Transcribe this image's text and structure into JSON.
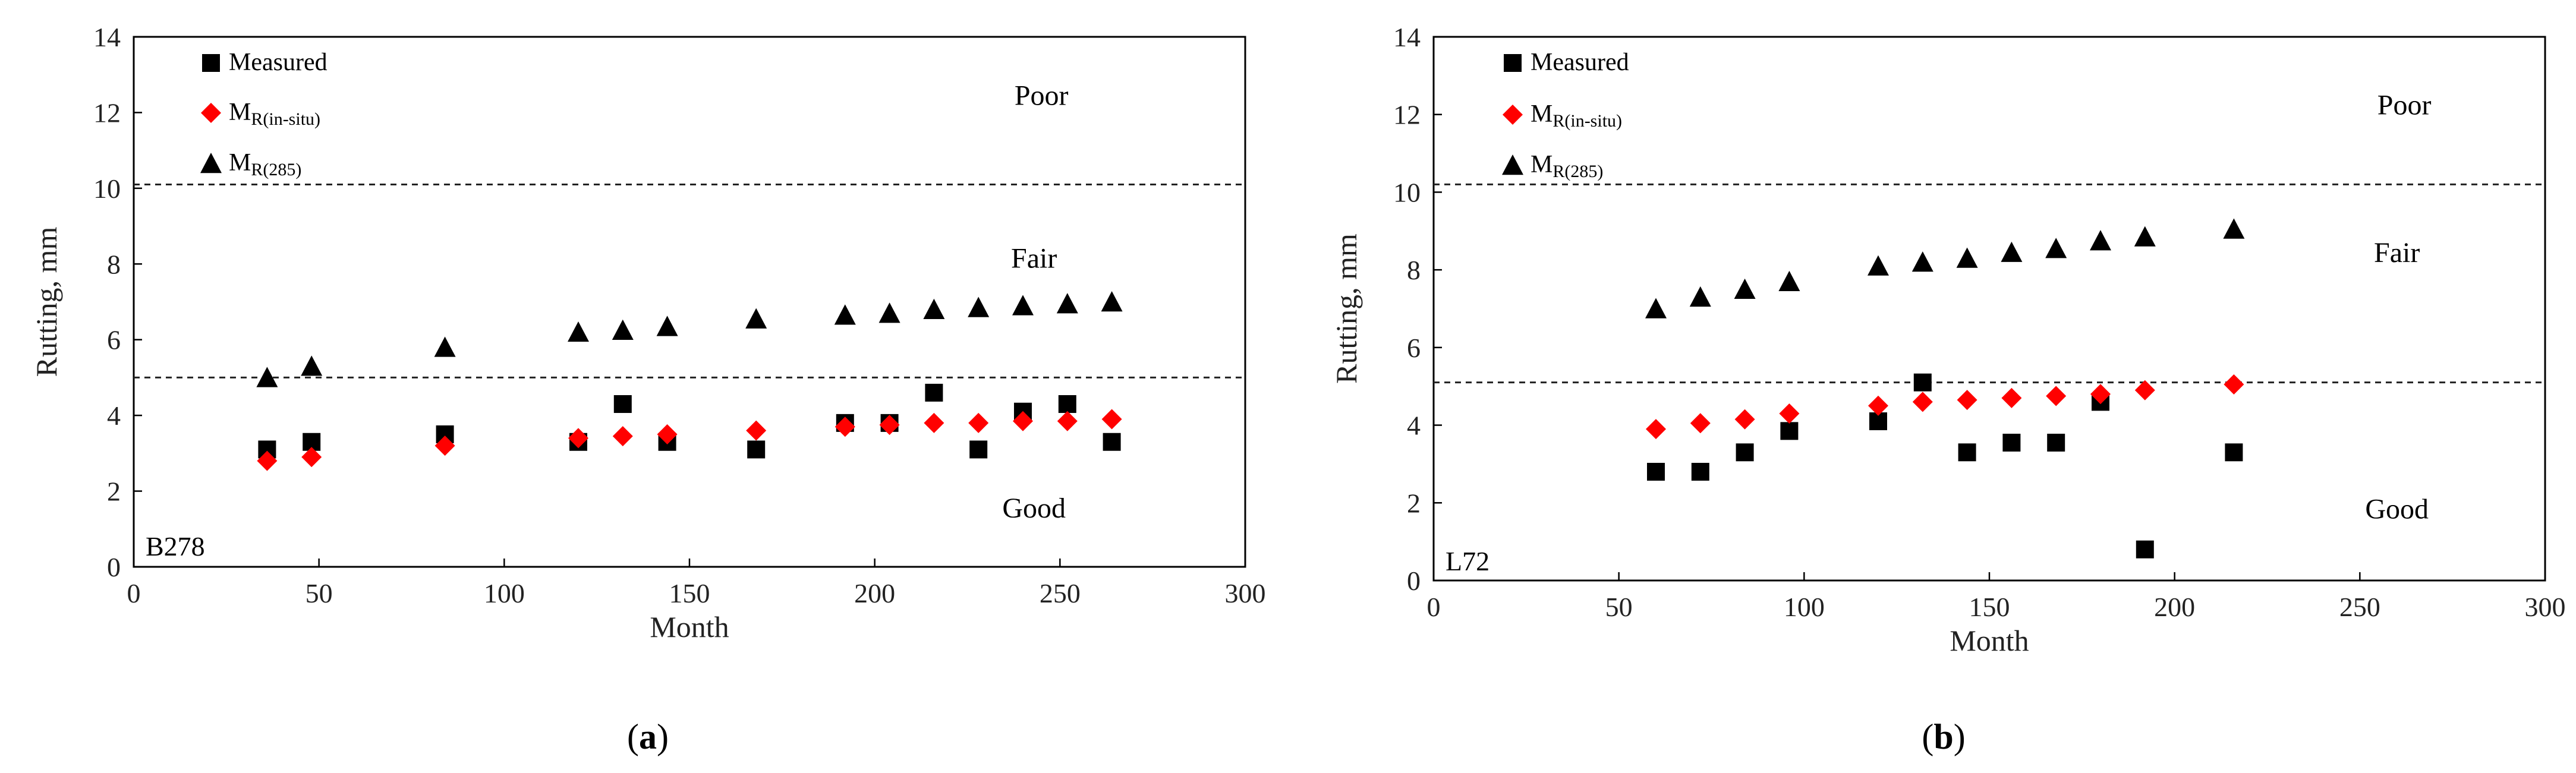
{
  "chart_data": [
    {
      "type": "scatter",
      "panel_label": "(a)",
      "caption_open": "(",
      "caption_letter": "a",
      "caption_close": ")",
      "section_tag": "B278",
      "xlabel": "Month",
      "ylabel": "Rutting, mm",
      "xlim": [
        0,
        300
      ],
      "ylim": [
        0,
        14
      ],
      "xticks": [
        0,
        50,
        100,
        150,
        200,
        250,
        300
      ],
      "yticks": [
        0,
        2,
        4,
        6,
        8,
        10,
        12,
        14
      ],
      "thresholds": [
        10.1,
        5.0
      ],
      "zones": [
        {
          "label": "Poor",
          "x": 245,
          "y": 12.2
        },
        {
          "label": "Fair",
          "x": 243,
          "y": 7.9
        },
        {
          "label": "Good",
          "x": 243,
          "y": 1.3
        }
      ],
      "legend": [
        {
          "name": "Measured",
          "main": "Measured",
          "sub": "",
          "marker": "square",
          "color": "#000000"
        },
        {
          "name": "MR(in-situ)",
          "main": "M",
          "sub": "R(in-situ)",
          "marker": "diamond",
          "color": "#ff0000"
        },
        {
          "name": "MR(285)",
          "main": "M",
          "sub": "R(285)",
          "marker": "triangle",
          "color": "#000000"
        }
      ],
      "series": [
        {
          "name": "Measured",
          "marker": "square",
          "color": "#000000",
          "points": [
            [
              36,
              3.1
            ],
            [
              48,
              3.3
            ],
            [
              84,
              3.5
            ],
            [
              120,
              3.3
            ],
            [
              132,
              4.3
            ],
            [
              144,
              3.3
            ],
            [
              168,
              3.1
            ],
            [
              192,
              3.8
            ],
            [
              204,
              3.8
            ],
            [
              216,
              4.6
            ],
            [
              228,
              3.1
            ],
            [
              240,
              4.1
            ],
            [
              252,
              4.3
            ],
            [
              264,
              3.3
            ]
          ]
        },
        {
          "name": "MR(in-situ)",
          "marker": "diamond",
          "color": "#ff0000",
          "points": [
            [
              36,
              2.8
            ],
            [
              48,
              2.9
            ],
            [
              84,
              3.2
            ],
            [
              120,
              3.4
            ],
            [
              132,
              3.45
            ],
            [
              144,
              3.5
            ],
            [
              168,
              3.6
            ],
            [
              192,
              3.7
            ],
            [
              204,
              3.75
            ],
            [
              216,
              3.8
            ],
            [
              228,
              3.8
            ],
            [
              240,
              3.85
            ],
            [
              252,
              3.85
            ],
            [
              264,
              3.9
            ]
          ]
        },
        {
          "name": "MR(285)",
          "marker": "triangle",
          "color": "#000000",
          "points": [
            [
              36,
              5.0
            ],
            [
              48,
              5.3
            ],
            [
              84,
              5.8
            ],
            [
              120,
              6.2
            ],
            [
              132,
              6.25
            ],
            [
              144,
              6.35
            ],
            [
              168,
              6.55
            ],
            [
              192,
              6.65
            ],
            [
              204,
              6.7
            ],
            [
              216,
              6.8
            ],
            [
              228,
              6.85
            ],
            [
              240,
              6.9
            ],
            [
              252,
              6.95
            ],
            [
              264,
              7.0
            ]
          ]
        }
      ]
    },
    {
      "type": "scatter",
      "panel_label": "(b)",
      "caption_open": "(",
      "caption_letter": "b",
      "caption_close": ")",
      "section_tag": "L72",
      "xlabel": "Month",
      "ylabel": "Rutting, mm",
      "xlim": [
        0,
        300
      ],
      "ylim": [
        0,
        14
      ],
      "xticks": [
        0,
        50,
        100,
        150,
        200,
        250,
        300
      ],
      "yticks": [
        0,
        2,
        4,
        6,
        8,
        10,
        12,
        14
      ],
      "thresholds": [
        10.2,
        5.1
      ],
      "zones": [
        {
          "label": "Poor",
          "x": 262,
          "y": 12.0
        },
        {
          "label": "Fair",
          "x": 260,
          "y": 8.2
        },
        {
          "label": "Good",
          "x": 260,
          "y": 1.6
        }
      ],
      "legend": [
        {
          "name": "Measured",
          "main": "Measured",
          "sub": "",
          "marker": "square",
          "color": "#000000"
        },
        {
          "name": "MR(in-situ)",
          "main": "M",
          "sub": "R(in-situ)",
          "marker": "diamond",
          "color": "#ff0000"
        },
        {
          "name": "MR(285)",
          "main": "M",
          "sub": "R(285)",
          "marker": "triangle",
          "color": "#000000"
        }
      ],
      "series": [
        {
          "name": "Measured",
          "marker": "square",
          "color": "#000000",
          "points": [
            [
              60,
              2.8
            ],
            [
              72,
              2.8
            ],
            [
              84,
              3.3
            ],
            [
              96,
              3.85
            ],
            [
              120,
              4.1
            ],
            [
              132,
              5.1
            ],
            [
              144,
              3.3
            ],
            [
              156,
              3.55
            ],
            [
              168,
              3.55
            ],
            [
              180,
              4.6
            ],
            [
              192,
              0.8
            ],
            [
              216,
              3.3
            ]
          ]
        },
        {
          "name": "MR(in-situ)",
          "marker": "diamond",
          "color": "#ff0000",
          "points": [
            [
              60,
              3.9
            ],
            [
              72,
              4.05
            ],
            [
              84,
              4.15
            ],
            [
              96,
              4.3
            ],
            [
              120,
              4.5
            ],
            [
              132,
              4.6
            ],
            [
              144,
              4.65
            ],
            [
              156,
              4.7
            ],
            [
              168,
              4.75
            ],
            [
              180,
              4.8
            ],
            [
              192,
              4.9
            ],
            [
              216,
              5.05
            ]
          ]
        },
        {
          "name": "MR(285)",
          "marker": "triangle",
          "color": "#000000",
          "points": [
            [
              60,
              7.0
            ],
            [
              72,
              7.3
            ],
            [
              84,
              7.5
            ],
            [
              96,
              7.7
            ],
            [
              120,
              8.1
            ],
            [
              132,
              8.2
            ],
            [
              144,
              8.3
            ],
            [
              156,
              8.45
            ],
            [
              168,
              8.55
            ],
            [
              180,
              8.75
            ],
            [
              192,
              8.85
            ],
            [
              216,
              9.05
            ]
          ]
        }
      ]
    }
  ]
}
